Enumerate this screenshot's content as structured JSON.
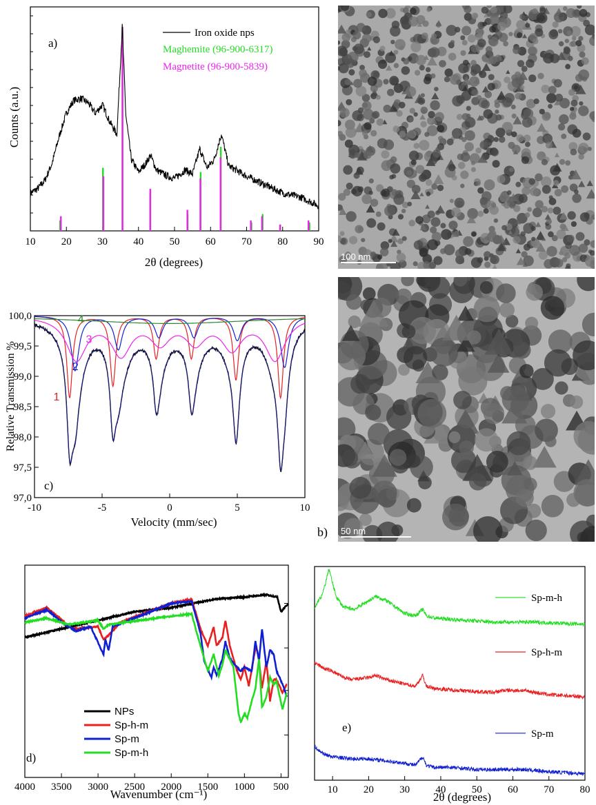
{
  "colors": {
    "black": "#000000",
    "green": "#22dd22",
    "magenta": "#ee22ee",
    "red": "#e82020",
    "blue": "#1020d0",
    "navy": "#1a1a6e",
    "olive": "#2a8a2a"
  },
  "chart_data": [
    {
      "panel": "a)",
      "type": "line",
      "xlabel": "2θ (degrees)",
      "ylabel": "Counts (a.u.)",
      "xlim": [
        10,
        90
      ],
      "xticks": [
        10,
        20,
        30,
        40,
        50,
        60,
        70,
        80,
        90
      ],
      "legend": [
        "Iron oxide nps",
        "Maghemite (96-900-6317)",
        "Magnetite (96-900-5839)"
      ],
      "legend_position": "top-right",
      "series": [
        {
          "name": "Iron oxide nps",
          "x": [
            10,
            12,
            14,
            16,
            18,
            20,
            22,
            24,
            26,
            28,
            30,
            32,
            34,
            35.5,
            36.5,
            38,
            40,
            42,
            43.3,
            45,
            48,
            50,
            53,
            55,
            57,
            59,
            61,
            63,
            65,
            70,
            75,
            80,
            85,
            90
          ],
          "y": [
            0.18,
            0.2,
            0.24,
            0.32,
            0.45,
            0.56,
            0.62,
            0.63,
            0.61,
            0.56,
            0.6,
            0.52,
            0.46,
            0.97,
            0.55,
            0.34,
            0.28,
            0.32,
            0.36,
            0.29,
            0.26,
            0.25,
            0.29,
            0.27,
            0.39,
            0.3,
            0.34,
            0.46,
            0.31,
            0.26,
            0.22,
            0.18,
            0.16,
            0.12
          ]
        },
        {
          "name": "Maghemite (96-900-6317)",
          "type": "stick",
          "x": [
            18.3,
            30.2,
            35.6,
            43.3,
            53.7,
            57.3,
            62.9,
            71.4,
            74.5,
            79.4,
            87.5
          ],
          "y": [
            0.05,
            0.3,
            0.97,
            0.18,
            0.08,
            0.28,
            0.4,
            0.04,
            0.08,
            0.03,
            0.04
          ]
        },
        {
          "name": "Magnetite (96-900-5839)",
          "type": "stick",
          "x": [
            18.3,
            30.1,
            35.4,
            43.1,
            53.4,
            57.0,
            62.6,
            71.0,
            74.1,
            79.1,
            87.0
          ],
          "y": [
            0.07,
            0.26,
            0.97,
            0.2,
            0.1,
            0.25,
            0.35,
            0.05,
            0.07,
            0.03,
            0.05
          ]
        }
      ]
    },
    {
      "panel": "c)",
      "type": "line",
      "xlabel": "Velocity (mm/sec)",
      "ylabel": "Relative Transmission %",
      "xlim": [
        -10,
        10
      ],
      "ylim": [
        97.0,
        100.0
      ],
      "xticks": [
        -10,
        -5,
        0,
        5,
        10
      ],
      "yticks": [
        "97,0",
        "97,5",
        "98,0",
        "98,5",
        "99,0",
        "99,5",
        "100,0"
      ],
      "annotations": [
        "1",
        "2",
        "3",
        "4"
      ],
      "components": [
        {
          "name": "1",
          "lines": [
            [
              -7.4,
              1.35
            ],
            [
              -4.2,
              1.15
            ],
            [
              -1.0,
              0.7
            ],
            [
              1.6,
              0.7
            ],
            [
              4.9,
              1.05
            ],
            [
              8.2,
              1.35
            ]
          ],
          "width": 0.25
        },
        {
          "name": "2",
          "lines": [
            [
              -7.0,
              0.9
            ],
            [
              -3.8,
              0.55
            ],
            [
              -0.8,
              0.35
            ],
            [
              1.8,
              0.35
            ],
            [
              5.0,
              0.4
            ],
            [
              8.5,
              0.85
            ]
          ],
          "width": 0.35
        },
        {
          "name": "3",
          "lines": [
            [
              -6.9,
              0.7
            ],
            [
              -3.6,
              0.6
            ],
            [
              -0.7,
              0.4
            ],
            [
              1.9,
              0.4
            ],
            [
              4.6,
              0.5
            ],
            [
              7.8,
              0.7
            ]
          ],
          "width": 0.9
        },
        {
          "name": "4",
          "lines": [
            [
              0.0,
              0.13
            ]
          ],
          "width": 8.0
        }
      ]
    },
    {
      "panel": "d)",
      "type": "line",
      "xlabel": "Wavenumber (cm⁻¹)",
      "xlim": [
        4000,
        400
      ],
      "xticks": [
        4000,
        3500,
        3000,
        2500,
        2000,
        1500,
        1000,
        500
      ],
      "legend_position": "bottom-left",
      "series": [
        {
          "name": "NPs",
          "x": [
            4000,
            3500,
            3000,
            2500,
            2000,
            1700,
            1400,
            1000,
            700,
            550,
            500,
            450,
            400
          ],
          "y": [
            0.66,
            0.7,
            0.74,
            0.78,
            0.8,
            0.82,
            0.84,
            0.85,
            0.86,
            0.85,
            0.78,
            0.8,
            0.82
          ]
        },
        {
          "name": "Sp-h-m",
          "x": [
            4000,
            3700,
            3350,
            3000,
            2925,
            2855,
            2700,
            2000,
            1720,
            1600,
            1500,
            1420,
            1380,
            1300,
            1260,
            1200,
            1100,
            1050,
            1000,
            940,
            880,
            840,
            800,
            760,
            700,
            650,
            600,
            560,
            480,
            420
          ],
          "y": [
            0.76,
            0.8,
            0.7,
            0.71,
            0.65,
            0.67,
            0.73,
            0.82,
            0.84,
            0.7,
            0.62,
            0.71,
            0.62,
            0.66,
            0.74,
            0.62,
            0.5,
            0.46,
            0.52,
            0.43,
            0.55,
            0.62,
            0.55,
            0.42,
            0.55,
            0.36,
            0.46,
            0.46,
            0.4,
            0.44
          ]
        },
        {
          "name": "Sp-m",
          "x": [
            4000,
            3700,
            3450,
            3300,
            3100,
            2925,
            2900,
            2855,
            2800,
            2000,
            1720,
            1600,
            1550,
            1450,
            1420,
            1380,
            1300,
            1260,
            1200,
            1100,
            1050,
            1000,
            900,
            850,
            800,
            760,
            700,
            650,
            600,
            560,
            480,
            420
          ],
          "y": [
            0.75,
            0.79,
            0.72,
            0.69,
            0.71,
            0.58,
            0.65,
            0.6,
            0.71,
            0.82,
            0.83,
            0.68,
            0.55,
            0.47,
            0.52,
            0.48,
            0.56,
            0.64,
            0.56,
            0.52,
            0.5,
            0.52,
            0.5,
            0.64,
            0.55,
            0.7,
            0.52,
            0.6,
            0.58,
            0.5,
            0.44,
            0.38
          ]
        },
        {
          "name": "Sp-m-h",
          "x": [
            4000,
            3700,
            3400,
            3200,
            3000,
            2925,
            2855,
            2000,
            1720,
            1650,
            1600,
            1500,
            1420,
            1350,
            1300,
            1260,
            1150,
            1080,
            1050,
            1000,
            960,
            900,
            850,
            800,
            760,
            700,
            650,
            600,
            560,
            480,
            420
          ],
          "y": [
            0.73,
            0.75,
            0.72,
            0.73,
            0.74,
            0.7,
            0.72,
            0.76,
            0.77,
            0.68,
            0.62,
            0.5,
            0.58,
            0.48,
            0.53,
            0.6,
            0.52,
            0.3,
            0.26,
            0.3,
            0.28,
            0.36,
            0.42,
            0.56,
            0.33,
            0.38,
            0.47,
            0.44,
            0.45,
            0.32,
            0.4
          ]
        }
      ],
      "annotation": "d)"
    },
    {
      "panel": "e)",
      "type": "line",
      "xlabel": "2θ (degrees)",
      "xlim": [
        5,
        80
      ],
      "xticks": [
        10,
        20,
        30,
        40,
        50,
        60,
        70,
        80
      ],
      "series": [
        {
          "name": "Sp-m-h",
          "x": [
            5,
            6,
            7,
            8,
            9,
            10,
            11,
            13,
            16,
            20,
            22,
            25,
            30,
            33,
            35,
            36,
            38,
            45,
            55,
            65,
            80
          ],
          "y": [
            0.8,
            0.84,
            0.86,
            0.92,
            0.99,
            0.92,
            0.86,
            0.81,
            0.8,
            0.84,
            0.86,
            0.84,
            0.78,
            0.77,
            0.8,
            0.77,
            0.76,
            0.75,
            0.74,
            0.74,
            0.73
          ]
        },
        {
          "name": "Sp-h-m",
          "x": [
            5,
            6,
            8,
            10,
            12,
            15,
            20,
            22,
            25,
            30,
            33,
            35,
            36,
            38,
            45,
            55,
            57,
            63,
            70,
            80
          ],
          "y": [
            0.55,
            0.54,
            0.52,
            0.51,
            0.49,
            0.47,
            0.48,
            0.49,
            0.47,
            0.45,
            0.44,
            0.49,
            0.44,
            0.43,
            0.42,
            0.41,
            0.42,
            0.42,
            0.4,
            0.39
          ]
        },
        {
          "name": "Sp-m",
          "x": [
            5,
            6,
            8,
            10,
            15,
            20,
            25,
            30,
            33,
            35,
            36,
            38,
            43,
            50,
            57,
            63,
            70,
            80
          ],
          "y": [
            0.16,
            0.14,
            0.12,
            0.11,
            0.1,
            0.1,
            0.09,
            0.08,
            0.07,
            0.11,
            0.07,
            0.06,
            0.06,
            0.05,
            0.05,
            0.05,
            0.04,
            0.03
          ]
        }
      ],
      "annotation": "e)"
    }
  ],
  "tem_images": [
    {
      "scale_label": "100 nm"
    },
    {
      "scale_label": "50 nm",
      "panel": "b)"
    }
  ]
}
